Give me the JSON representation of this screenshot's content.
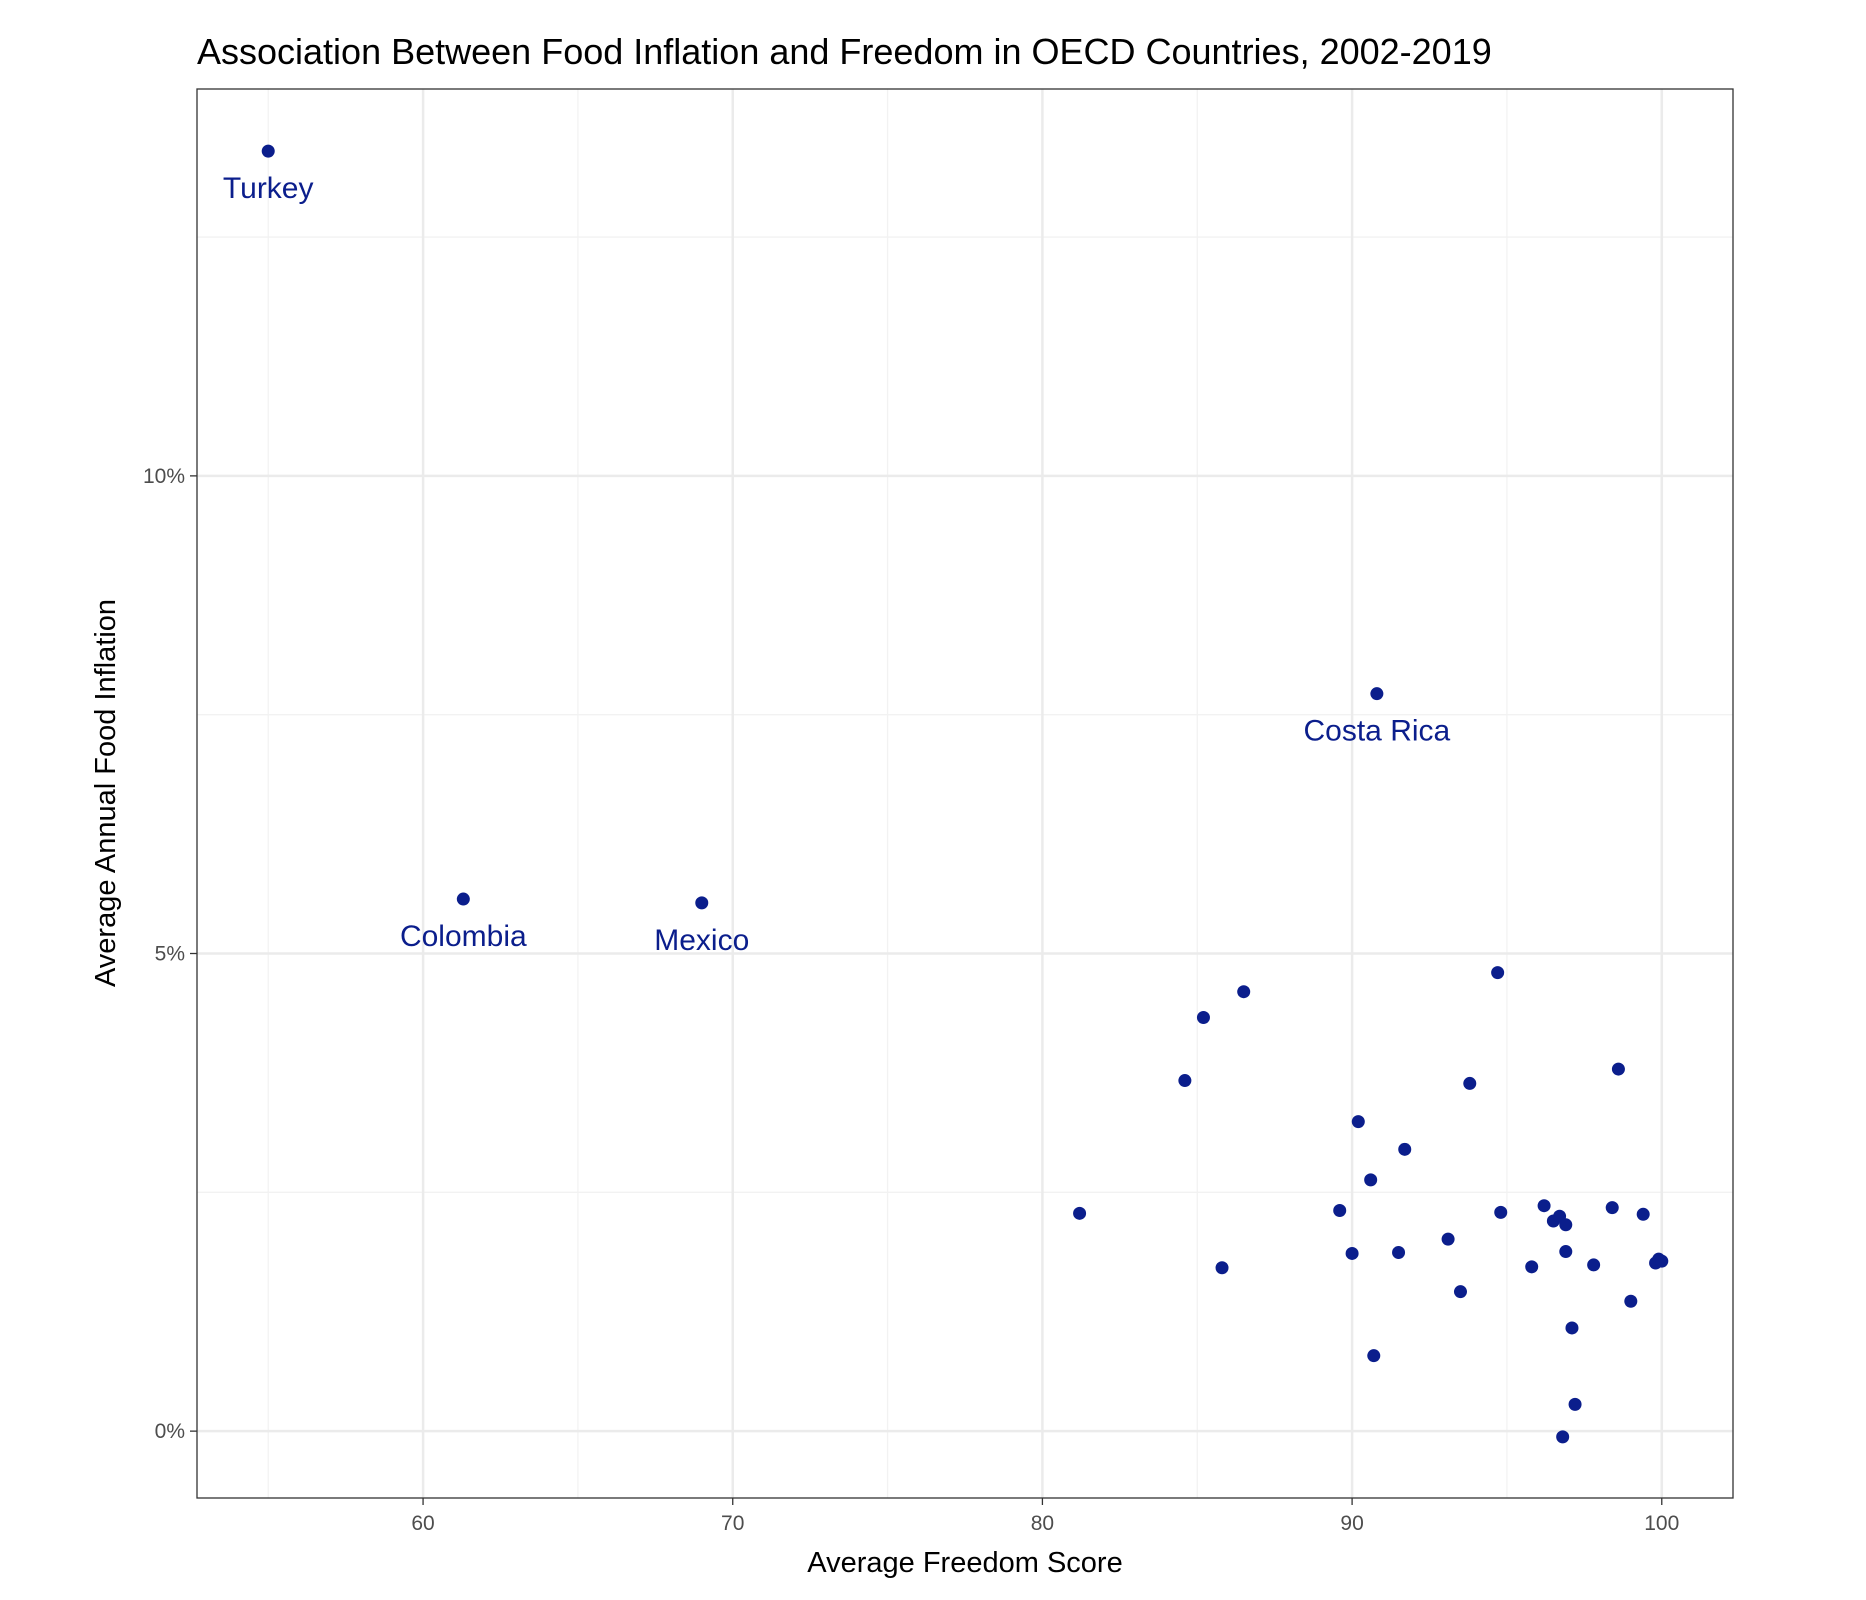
{
  "chart_data": {
    "type": "scatter",
    "title": "Association Between Food Inflation and Freedom in OECD Countries, 2002-2019",
    "xlabel": "Average Freedom Score",
    "ylabel": "Average Annual Food Inflation",
    "xlim": [
      52.7,
      102.3
    ],
    "ylim": [
      -0.7,
      14.05
    ],
    "x_ticks": [
      60,
      70,
      80,
      90,
      100
    ],
    "y_ticks": [
      0,
      5,
      10
    ],
    "y_tick_labels": [
      "0%",
      "5%",
      "10%"
    ],
    "grid": true,
    "point_color": "#0b1e8c",
    "points": [
      {
        "x": 55.0,
        "y": 13.4,
        "label": "Turkey"
      },
      {
        "x": 61.3,
        "y": 5.57,
        "label": "Colombia"
      },
      {
        "x": 69.0,
        "y": 5.53,
        "label": "Mexico"
      },
      {
        "x": 90.8,
        "y": 7.72,
        "label": "Costa Rica"
      },
      {
        "x": 81.2,
        "y": 2.28
      },
      {
        "x": 84.6,
        "y": 3.67
      },
      {
        "x": 85.2,
        "y": 4.33
      },
      {
        "x": 85.8,
        "y": 1.71
      },
      {
        "x": 86.5,
        "y": 4.6
      },
      {
        "x": 89.6,
        "y": 2.31
      },
      {
        "x": 90.0,
        "y": 1.86
      },
      {
        "x": 90.2,
        "y": 3.24
      },
      {
        "x": 90.6,
        "y": 2.63
      },
      {
        "x": 90.7,
        "y": 0.79
      },
      {
        "x": 91.5,
        "y": 1.87
      },
      {
        "x": 91.7,
        "y": 2.95
      },
      {
        "x": 93.1,
        "y": 2.01
      },
      {
        "x": 93.5,
        "y": 1.46
      },
      {
        "x": 93.8,
        "y": 3.64
      },
      {
        "x": 94.7,
        "y": 4.8
      },
      {
        "x": 94.8,
        "y": 2.29
      },
      {
        "x": 95.8,
        "y": 1.72
      },
      {
        "x": 96.2,
        "y": 2.36
      },
      {
        "x": 96.5,
        "y": 2.2
      },
      {
        "x": 96.7,
        "y": 2.25
      },
      {
        "x": 96.8,
        "y": -0.06
      },
      {
        "x": 96.9,
        "y": 2.16
      },
      {
        "x": 96.9,
        "y": 1.88
      },
      {
        "x": 97.1,
        "y": 1.08
      },
      {
        "x": 97.2,
        "y": 0.28
      },
      {
        "x": 97.8,
        "y": 1.74
      },
      {
        "x": 98.4,
        "y": 2.34
      },
      {
        "x": 98.6,
        "y": 3.79
      },
      {
        "x": 99.0,
        "y": 1.36
      },
      {
        "x": 99.4,
        "y": 2.27
      },
      {
        "x": 99.8,
        "y": 1.76
      },
      {
        "x": 99.9,
        "y": 1.8
      },
      {
        "x": 100.0,
        "y": 1.78
      }
    ]
  }
}
